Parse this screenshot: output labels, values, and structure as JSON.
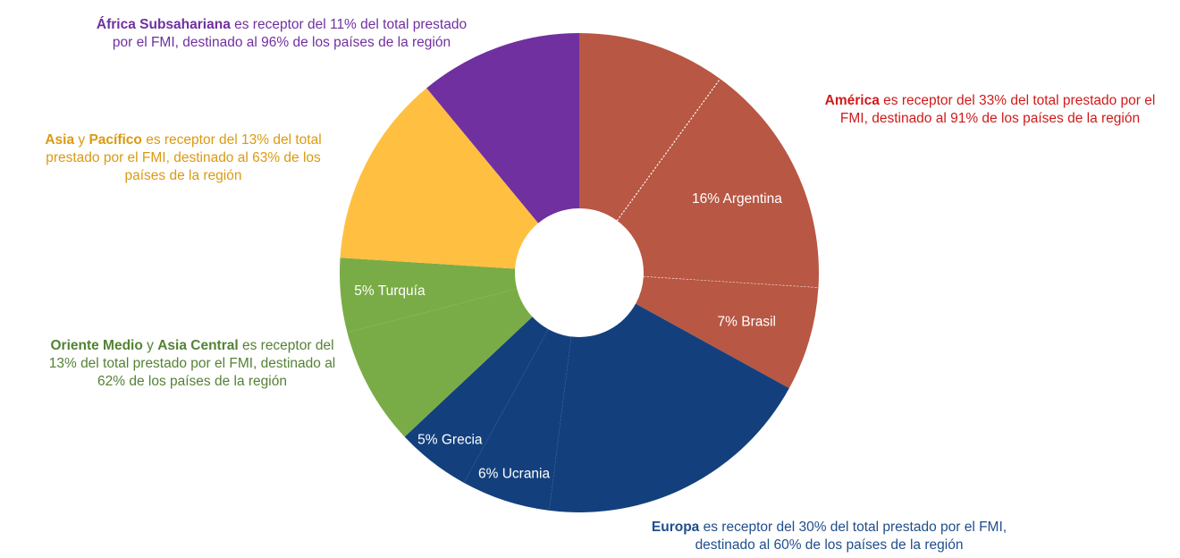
{
  "chart_data": {
    "type": "pie",
    "variant": "donut",
    "unit": "% del total prestado por el FMI",
    "start": "top, clockwise",
    "slices": [
      {
        "region": "america",
        "label": "",
        "value": 10
      },
      {
        "region": "america",
        "label": "16% Argentina",
        "value": 16
      },
      {
        "region": "america",
        "label": "7% Brasil",
        "value": 7
      },
      {
        "region": "europa",
        "label": "",
        "value": 19
      },
      {
        "region": "europa",
        "label": "6% Ucrania",
        "value": 6
      },
      {
        "region": "europa",
        "label": "5% Grecia",
        "value": 5
      },
      {
        "region": "oriente",
        "label": "",
        "value": 8
      },
      {
        "region": "oriente",
        "label": "5% Turquía",
        "value": 5
      },
      {
        "region": "asia",
        "label": "",
        "value": 13
      },
      {
        "region": "africa",
        "label": "",
        "value": 11
      }
    ],
    "colors": {
      "america": "#B85743",
      "europa": "#13407D",
      "oriente": "#79AC46",
      "asia": "#FFBF41",
      "africa": "#7030A0"
    },
    "text_colors": {
      "america": "#D01A1A",
      "europa": "#1F4E8C",
      "oriente": "#548235",
      "asia": "#DB9A12",
      "africa": "#7030A0"
    },
    "annotations": {
      "africa": {
        "bold1": "África Subsahariana",
        "mid": "",
        "bold2": "",
        "text": " es receptor del 11% del total prestado por el FMI, destinado al 96% de los países de la región"
      },
      "asia": {
        "bold1": "Asia",
        "mid": " y ",
        "bold2": "Pacífico",
        "text": " es receptor del 13% del total prestado por el FMI, destinado al 63% de los países de la región"
      },
      "oriente": {
        "bold1": "Oriente Medio",
        "mid": " y ",
        "bold2": "Asia Central",
        "text": " es receptor del 13% del total prestado por el FMI, destinado al 62% de los países de la región"
      },
      "america": {
        "bold1": "América",
        "mid": "",
        "bold2": "",
        "text": " es receptor del 33% del total prestado por el FMI, destinado al 91% de los países de la región"
      },
      "europa": {
        "bold1": "Europa",
        "mid": "",
        "bold2": "",
        "text": " es receptor del 30% del total prestado por el FMI, destinado al 60% de los países de la región"
      }
    }
  }
}
